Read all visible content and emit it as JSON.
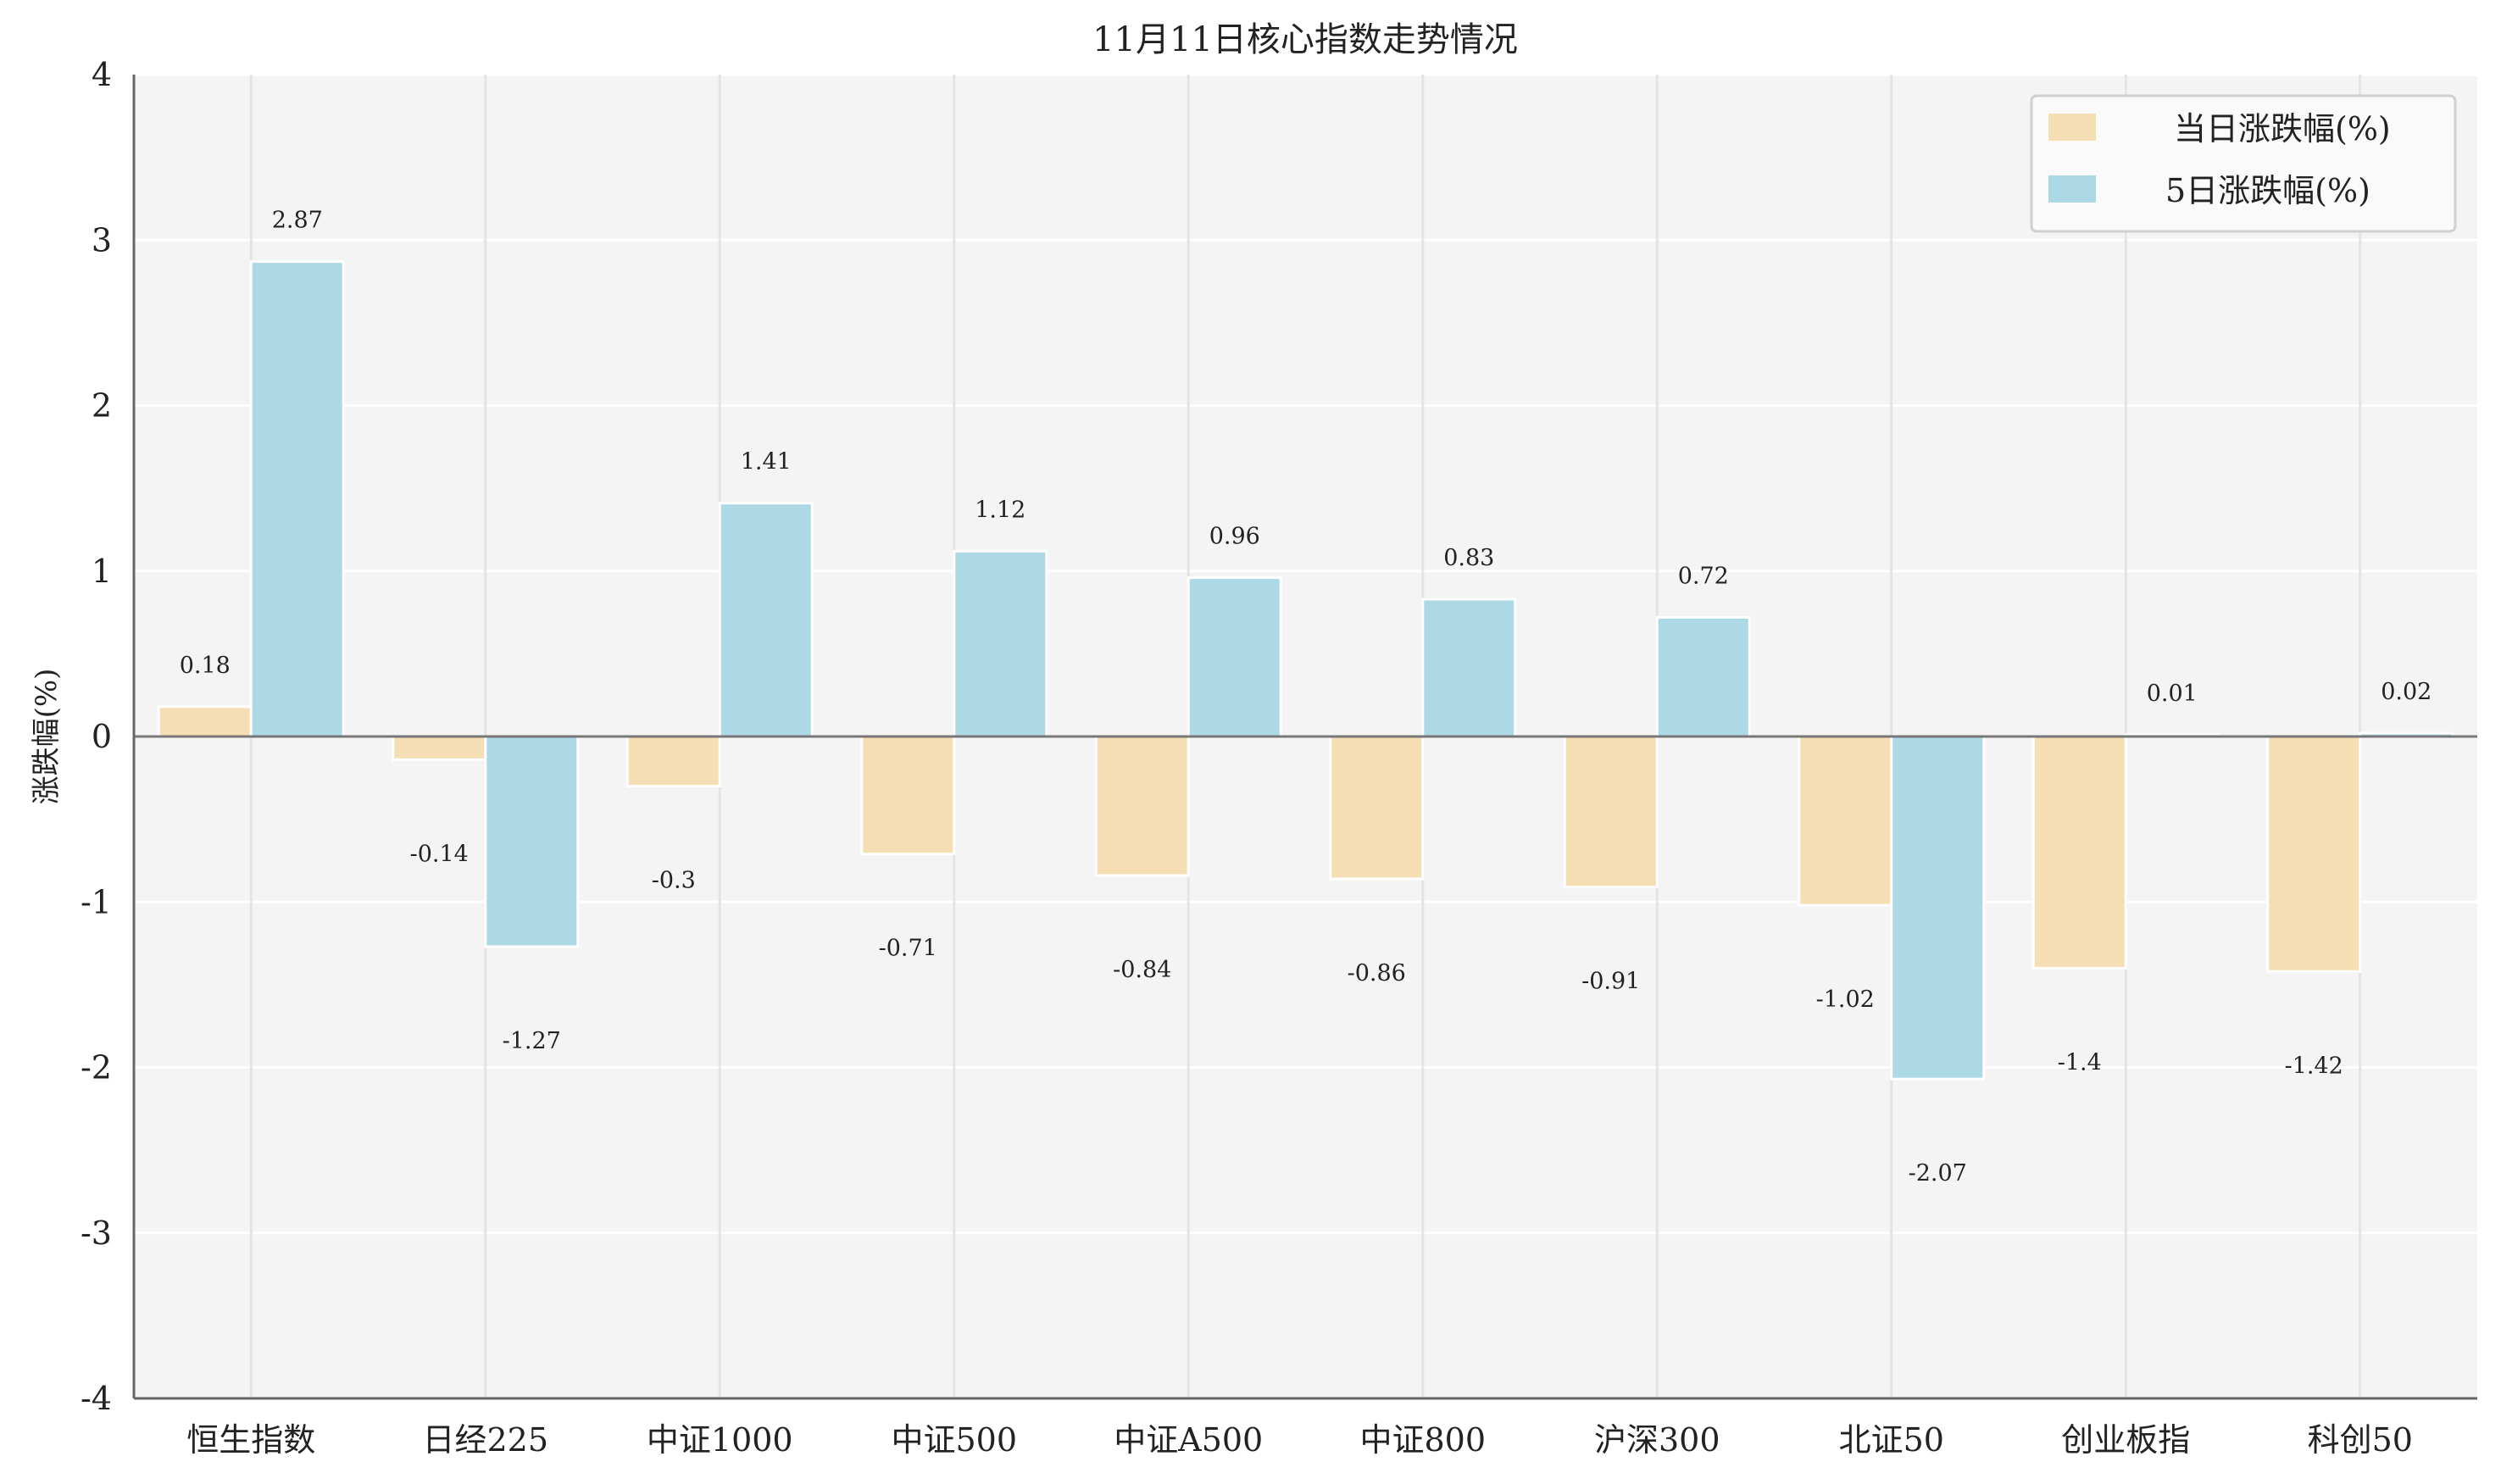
{
  "chart_data": {
    "type": "bar",
    "title": "11月11日核心指数走势情况",
    "xlabel": "",
    "ylabel": "涨跌幅(%)",
    "ylim": [
      -4,
      4
    ],
    "yticks": [
      "-4",
      "-3",
      "-2",
      "-1",
      "0",
      "1",
      "2",
      "3",
      "4"
    ],
    "grid": true,
    "legend_position": "top-right",
    "categories": [
      "恒生指数",
      "日经225",
      "中证1000",
      "中证500",
      "中证A500",
      "中证800",
      "沪深300",
      "北证50",
      "创业板指",
      "科创50"
    ],
    "series": [
      {
        "name": "当日涨跌幅(%)",
        "color": "#F5DEB3",
        "values": [
          0.18,
          -0.14,
          -0.3,
          -0.71,
          -0.84,
          -0.86,
          -0.91,
          -1.02,
          -1.4,
          -1.42
        ],
        "labels": [
          "0.18",
          "-0.14",
          "-0.3",
          "-0.71",
          "-0.84",
          "-0.86",
          "-0.91",
          "-1.02",
          "-1.4",
          "-1.42"
        ]
      },
      {
        "name": "5日涨跌幅(%)",
        "color": "#ADD8E6",
        "values": [
          2.87,
          -1.27,
          1.41,
          1.12,
          0.96,
          0.83,
          0.72,
          -2.07,
          0.01,
          0.02
        ],
        "labels": [
          "2.87",
          "-1.27",
          "1.41",
          "1.12",
          "0.96",
          "0.83",
          "0.72",
          "-2.07",
          "0.01",
          "0.02"
        ]
      }
    ]
  }
}
